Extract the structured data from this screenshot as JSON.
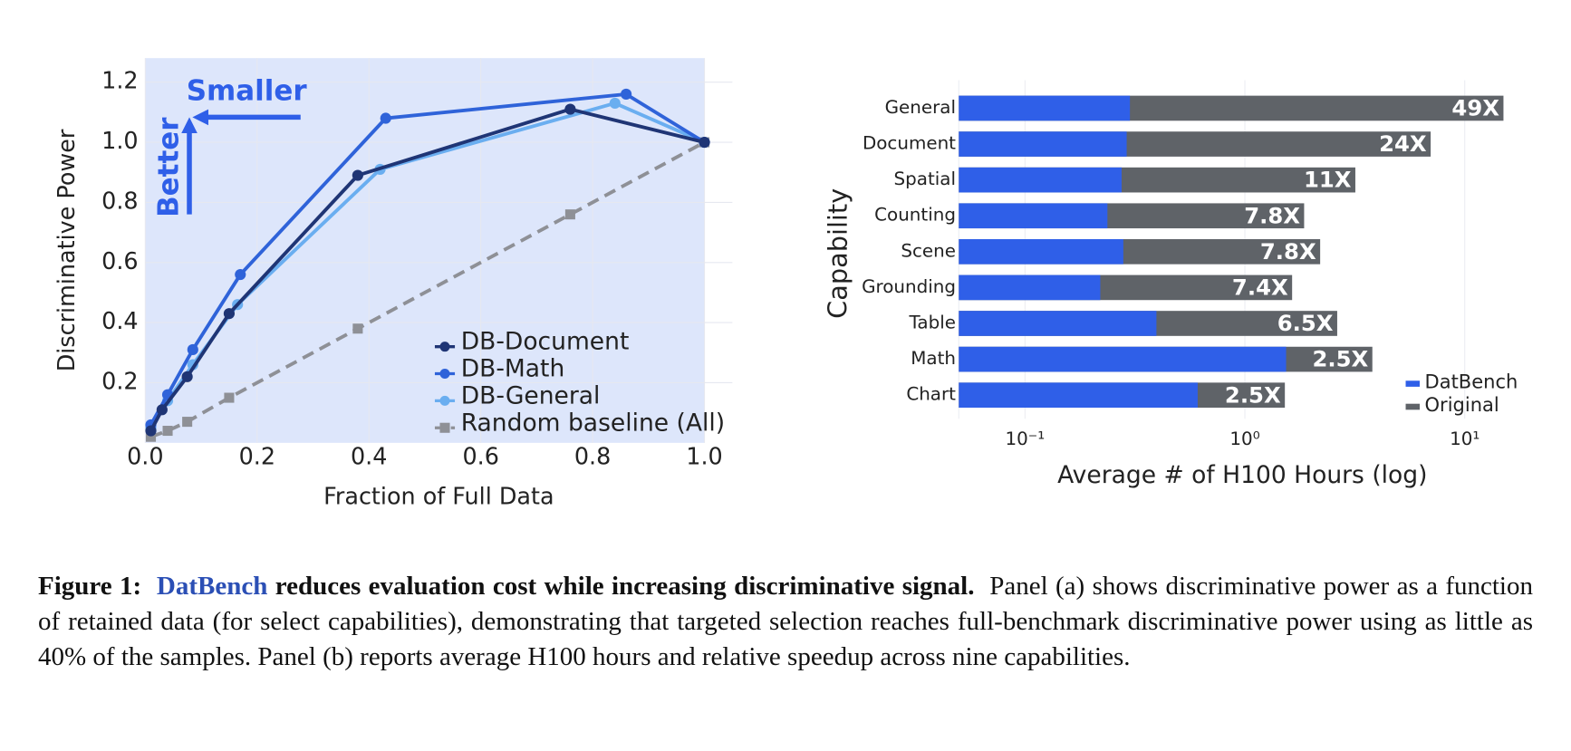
{
  "chart_data": [
    {
      "type": "line",
      "xlabel": "Fraction of Full Data",
      "ylabel": "Discriminative Power",
      "xlim": [
        0,
        1.05
      ],
      "ylim": [
        0,
        1.28
      ],
      "xticks": [
        {
          "value": 0,
          "label": "0.0"
        },
        0.2,
        0.4,
        0.6,
        0.8,
        {
          "value": 1,
          "label": "1.0"
        }
      ],
      "yticks": [
        0.2,
        0.4,
        0.6,
        0.8,
        {
          "value": 1,
          "label": "1.0"
        },
        1.2
      ],
      "grid": true,
      "background": "#dde6fb",
      "legend": "lower right",
      "annotations": [
        "Smaller",
        "Better"
      ],
      "annotation_color": "#2f5fe8",
      "series": [
        {
          "name": "DB-Document",
          "color": "#1f3575",
          "marker": "circle",
          "linestyle": "solid",
          "x": [
            0.01,
            0.03,
            0.075,
            0.15,
            0.38,
            0.76,
            1.0
          ],
          "values": [
            0.04,
            0.11,
            0.22,
            0.43,
            0.89,
            1.11,
            1.0
          ]
        },
        {
          "name": "DB-Math",
          "color": "#2f63d9",
          "marker": "circle",
          "linestyle": "solid",
          "x": [
            0.01,
            0.04,
            0.085,
            0.17,
            0.43,
            0.86,
            1.0
          ],
          "values": [
            0.06,
            0.16,
            0.31,
            0.56,
            1.08,
            1.16,
            1.0
          ]
        },
        {
          "name": "DB-General",
          "color": "#6aaef0",
          "marker": "circle",
          "linestyle": "solid",
          "x": [
            0.01,
            0.04,
            0.085,
            0.165,
            0.42,
            0.84,
            1.0
          ],
          "values": [
            0.05,
            0.14,
            0.26,
            0.46,
            0.91,
            1.13,
            1.0
          ]
        },
        {
          "name": "Random baseline (All)",
          "color": "#8e9096",
          "marker": "square",
          "linestyle": "dashed",
          "x": [
            0.01,
            0.04,
            0.075,
            0.15,
            0.38,
            0.76,
            1.0
          ],
          "values": [
            0.02,
            0.04,
            0.07,
            0.15,
            0.38,
            0.76,
            1.0
          ]
        }
      ]
    },
    {
      "type": "bar",
      "orientation": "horizontal",
      "xscale": "log",
      "xlabel": "Average # of H100 Hours (log)",
      "ylabel": "Capability",
      "xlim": [
        0.05,
        20
      ],
      "xticks": [
        {
          "value": 0.1,
          "label": "10⁻¹"
        },
        {
          "value": 1,
          "label": "10⁰"
        },
        {
          "value": 10,
          "label": "10¹"
        }
      ],
      "grid": true,
      "legend": "lower right",
      "categories": [
        "General",
        "Document",
        "Spatial",
        "Counting",
        "Scene",
        "Grounding",
        "Table",
        "Math",
        "Chart"
      ],
      "series": [
        {
          "name": "DatBench",
          "color": "#2f5fe8",
          "values": [
            0.3,
            0.29,
            0.275,
            0.237,
            0.28,
            0.22,
            0.396,
            1.54,
            0.61
          ]
        },
        {
          "name": "Original",
          "color": "#5f6368",
          "values": [
            15.0,
            7.0,
            3.18,
            1.86,
            2.2,
            1.64,
            2.63,
            3.8,
            1.52
          ]
        }
      ],
      "bar_labels": [
        "49X",
        "24X",
        "11X",
        "7.8X",
        "7.8X",
        "7.4X",
        "6.5X",
        "2.5X",
        "2.5X"
      ]
    }
  ],
  "caption": {
    "label": "Figure 1:",
    "highlight": "DatBench",
    "title": "reduces evaluation cost while increasing discriminative signal.",
    "text": "Panel (a) shows discriminative power as a function of retained data (for select capabilities), demonstrating that targeted selection reaches full-benchmark discriminative power using as little as 40% of the samples. Panel (b) reports average H100 hours and relative speedup across nine capabilities."
  }
}
